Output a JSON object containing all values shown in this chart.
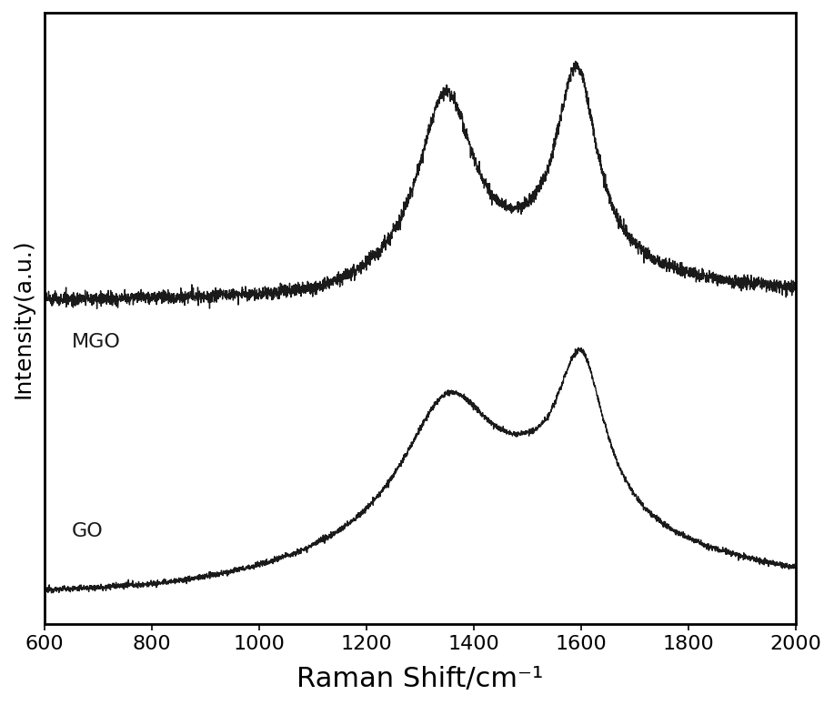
{
  "title": "",
  "xlabel": "Raman Shift/cm⁻¹",
  "ylabel": "Intensity(a.u.)",
  "xlim": [
    600,
    2000
  ],
  "x_ticks": [
    600,
    800,
    1000,
    1200,
    1400,
    1600,
    1800,
    2000
  ],
  "line_color": "#1a1a1a",
  "label_GO": "GO",
  "label_MGO": "MGO",
  "background_color": "#ffffff",
  "xlabel_fontsize": 22,
  "ylabel_fontsize": 18,
  "tick_fontsize": 16,
  "label_fontsize": 16
}
